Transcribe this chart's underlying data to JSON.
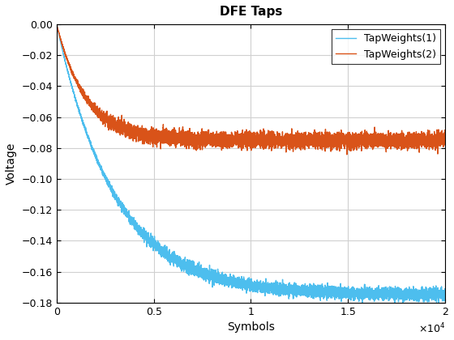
{
  "title": "DFE Taps",
  "xlabel": "Symbols",
  "ylabel": "Voltage",
  "xlim": [
    0,
    20000
  ],
  "ylim": [
    -0.18,
    0.0
  ],
  "yticks": [
    0,
    -0.02,
    -0.04,
    -0.06,
    -0.08,
    -0.1,
    -0.12,
    -0.14,
    -0.16,
    -0.18
  ],
  "xticks": [
    0,
    5000,
    10000,
    15000,
    20000
  ],
  "xtick_labels": [
    "0",
    "0.5",
    "1",
    "1.5",
    "2"
  ],
  "line1_color": "#4DBEEE",
  "line2_color": "#D95319",
  "legend_labels": [
    "TapWeights(1)",
    "TapWeights(2)"
  ],
  "n_points": 20000,
  "seed": 42,
  "background_color": "#ffffff",
  "grid_color": "#d0d0d0"
}
